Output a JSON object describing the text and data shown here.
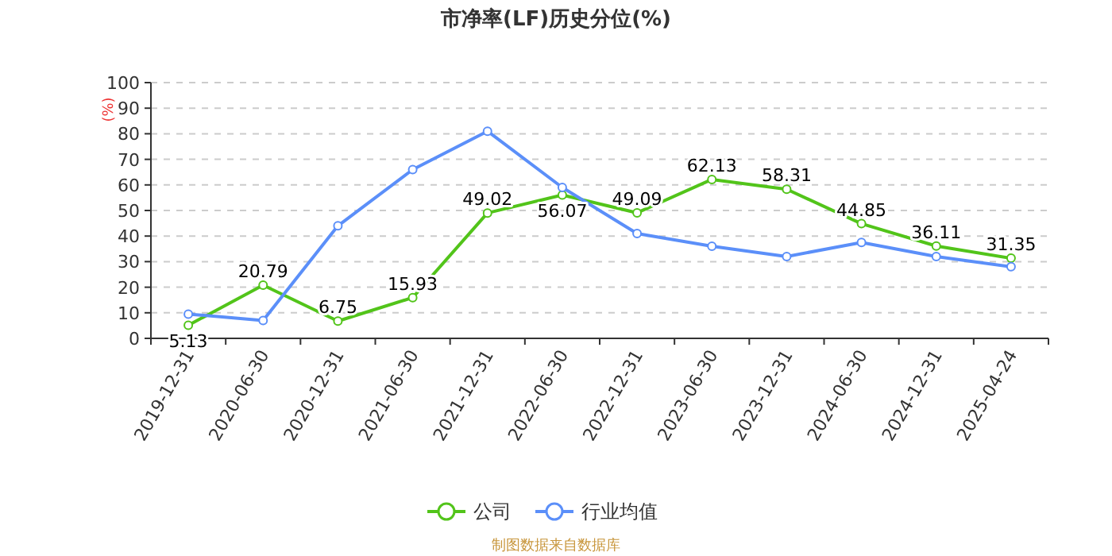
{
  "chart_data": {
    "type": "line",
    "title": "市净率(LF)历史分位(%)",
    "ylabel": "(%)",
    "categories": [
      "2019-12-31",
      "2020-06-30",
      "2020-12-31",
      "2021-06-30",
      "2021-12-31",
      "2022-06-30",
      "2022-12-31",
      "2023-06-30",
      "2023-12-31",
      "2024-06-30",
      "2024-12-31",
      "2025-04-24"
    ],
    "series": [
      {
        "name": "公司",
        "color": "#52c41a",
        "values": [
          5.13,
          20.79,
          6.75,
          15.93,
          49.02,
          56.07,
          49.09,
          62.13,
          58.31,
          44.85,
          36.11,
          31.35
        ],
        "value_labels": [
          "5.13",
          "20.79",
          "6.75",
          "15.93",
          "49.02",
          "56.07",
          "49.09",
          "62.13",
          "58.31",
          "44.85",
          "36.11",
          "31.35"
        ]
      },
      {
        "name": "行业均值",
        "color": "#5b8ff9",
        "values": [
          9.5,
          7,
          44,
          66,
          81,
          59,
          41,
          36,
          32,
          37.5,
          32,
          28
        ]
      }
    ],
    "ylim": [
      0,
      100
    ],
    "yticks": [
      0,
      10,
      20,
      30,
      40,
      50,
      60,
      70,
      80,
      90,
      100
    ],
    "grid": "y",
    "legend": "bottom",
    "marker": "circle",
    "line_style": "solid",
    "annotations": [
      "制图数据来自数据库"
    ]
  }
}
